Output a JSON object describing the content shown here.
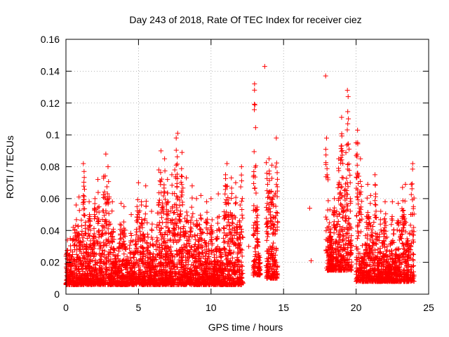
{
  "chart_data": {
    "type": "scatter",
    "title": "Day 243 of 2018, Rate Of TEC Index for receiver ciez",
    "xlabel": "GPS time / hours",
    "ylabel": "ROTI / TECUs",
    "xlim": [
      0,
      25
    ],
    "ylim": [
      0,
      0.16
    ],
    "x_ticks": [
      0,
      5,
      10,
      15,
      20,
      25
    ],
    "x_tick_labels": [
      "0",
      "5",
      "10",
      "15",
      "20",
      "25"
    ],
    "y_ticks": [
      0,
      0.02,
      0.04,
      0.06,
      0.08,
      0.1,
      0.12,
      0.14,
      0.16
    ],
    "y_tick_labels": [
      "0",
      "0.02",
      "0.04",
      "0.06",
      "0.08",
      "0.1",
      "0.12",
      "0.14",
      "0.16"
    ],
    "grid": true,
    "marker": "+",
    "series": [
      {
        "name": "ROTI",
        "color": "#ff0000",
        "points": [
          [
            0.1,
            0.034
          ],
          [
            0.15,
            0.011
          ],
          [
            0.3,
            0.035
          ],
          [
            0.5,
            0.042
          ],
          [
            0.7,
            0.056
          ],
          [
            0.9,
            0.061
          ],
          [
            1.2,
            0.082
          ],
          [
            1.25,
            0.077
          ],
          [
            1.6,
            0.058
          ],
          [
            2.0,
            0.06
          ],
          [
            2.2,
            0.072
          ],
          [
            2.6,
            0.074
          ],
          [
            2.75,
            0.088
          ],
          [
            2.9,
            0.08
          ],
          [
            3.2,
            0.058
          ],
          [
            3.8,
            0.057
          ],
          [
            4.0,
            0.055
          ],
          [
            4.5,
            0.05
          ],
          [
            4.9,
            0.055
          ],
          [
            5.0,
            0.07
          ],
          [
            5.2,
            0.058
          ],
          [
            5.5,
            0.068
          ],
          [
            5.9,
            0.052
          ],
          [
            6.4,
            0.078
          ],
          [
            6.55,
            0.09
          ],
          [
            6.8,
            0.085
          ],
          [
            7.0,
            0.072
          ],
          [
            7.3,
            0.075
          ],
          [
            7.5,
            0.078
          ],
          [
            7.6,
            0.098
          ],
          [
            7.7,
            0.101
          ],
          [
            8.0,
            0.089
          ],
          [
            8.3,
            0.073
          ],
          [
            8.7,
            0.068
          ],
          [
            9.0,
            0.06
          ],
          [
            9.3,
            0.062
          ],
          [
            9.7,
            0.058
          ],
          [
            10.0,
            0.06
          ],
          [
            10.5,
            0.063
          ],
          [
            11.0,
            0.075
          ],
          [
            11.1,
            0.082
          ],
          [
            11.4,
            0.073
          ],
          [
            11.7,
            0.07
          ],
          [
            12.1,
            0.08
          ],
          [
            12.6,
            0.03
          ],
          [
            13.0,
            0.132
          ],
          [
            13.2,
            0.031
          ],
          [
            13.7,
            0.143
          ],
          [
            13.9,
            0.069
          ],
          [
            14.0,
            0.085
          ],
          [
            14.2,
            0.081
          ],
          [
            14.5,
            0.098
          ],
          [
            14.6,
            0.045
          ],
          [
            16.8,
            0.054
          ],
          [
            16.9,
            0.021
          ],
          [
            17.9,
            0.137
          ],
          [
            18.0,
            0.075
          ],
          [
            18.2,
            0.053
          ],
          [
            18.5,
            0.06
          ],
          [
            18.8,
            0.085
          ],
          [
            19.0,
            0.111
          ],
          [
            19.2,
            0.065
          ],
          [
            19.4,
            0.128
          ],
          [
            19.45,
            0.124
          ],
          [
            19.6,
            0.06
          ],
          [
            20.0,
            0.095
          ],
          [
            20.1,
            0.103
          ],
          [
            20.3,
            0.085
          ],
          [
            20.8,
            0.069
          ],
          [
            21.0,
            0.062
          ],
          [
            21.3,
            0.075
          ],
          [
            21.7,
            0.052
          ],
          [
            22.0,
            0.058
          ],
          [
            22.5,
            0.058
          ],
          [
            22.9,
            0.057
          ],
          [
            23.2,
            0.067
          ],
          [
            23.4,
            0.069
          ],
          [
            23.8,
            0.069
          ],
          [
            23.9,
            0.082
          ],
          [
            23.95,
            0.055
          ]
        ],
        "dense_bands": [
          {
            "x_from": 0.0,
            "x_to": 12.2,
            "y_floor": 0.006
          },
          {
            "x_from": 12.9,
            "x_to": 13.4,
            "y_floor": 0.012
          },
          {
            "x_from": 13.8,
            "x_to": 14.6,
            "y_floor": 0.01
          },
          {
            "x_from": 17.9,
            "x_to": 19.7,
            "y_floor": 0.015
          },
          {
            "x_from": 20.0,
            "x_to": 24.0,
            "y_floor": 0.008
          }
        ]
      }
    ]
  }
}
